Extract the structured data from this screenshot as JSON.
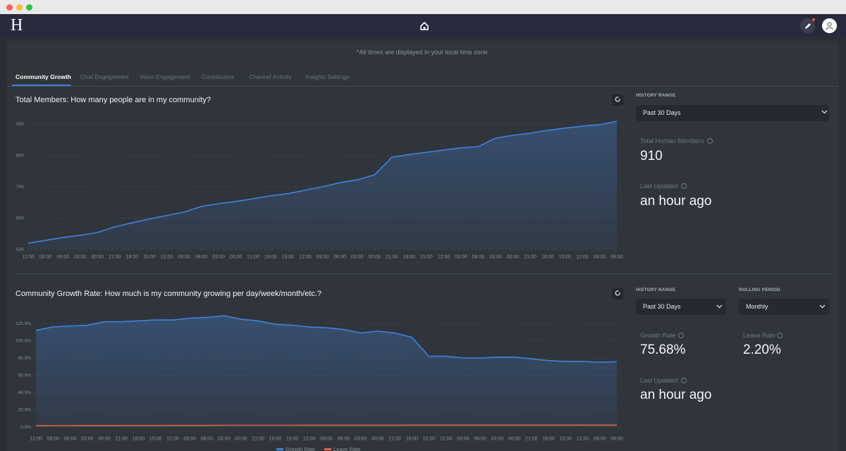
{
  "logo": "H",
  "header": {
    "note": "*All times are displayed in your local time zone."
  },
  "tabs": [
    "Community Growth",
    "Chat Engagement",
    "Voice Engagement",
    "Contributors",
    "Channel Activity",
    "Insights Settings"
  ],
  "charts": [
    {
      "type": "area",
      "title": "Total Members: How many people are in my community?",
      "categories": [
        "12:00",
        "09:00",
        "06:00",
        "03:00",
        "00:00",
        "21:00",
        "18:00",
        "15:00",
        "12:00",
        "09:00",
        "06:00",
        "03:00",
        "00:00",
        "21:00",
        "18:00",
        "15:00",
        "12:00",
        "09:00",
        "06:00",
        "03:00",
        "00:00",
        "21:00",
        "18:00",
        "15:00",
        "12:00",
        "09:00",
        "06:00",
        "03:00",
        "00:00",
        "21:00",
        "18:00",
        "15:00",
        "12:00",
        "09:00",
        "06:00"
      ],
      "values": [
        520,
        529,
        538,
        545,
        554,
        572,
        585,
        597,
        608,
        619,
        637,
        646,
        653,
        662,
        671,
        678,
        689,
        700,
        713,
        722,
        738,
        794,
        803,
        810,
        817,
        824,
        828,
        855,
        864,
        871,
        880,
        887,
        893,
        898,
        909
      ],
      "color": "#3f82dc",
      "ylim": [
        500,
        900
      ],
      "yticks": [
        500,
        600,
        700,
        800,
        900
      ],
      "grid": true
    },
    {
      "type": "area",
      "title": "Community Growth Rate: How much is my community growing per day/week/month/etc.?",
      "categories": [
        "12:00",
        "09:00",
        "06:00",
        "03:00",
        "00:00",
        "21:00",
        "18:00",
        "15:00",
        "12:00",
        "09:00",
        "06:00",
        "03:00",
        "00:00",
        "21:00",
        "18:00",
        "15:00",
        "12:00",
        "09:00",
        "06:00",
        "03:00",
        "00:00",
        "21:00",
        "18:00",
        "15:00",
        "12:00",
        "09:00",
        "06:00",
        "03:00",
        "00:00",
        "21:00",
        "18:00",
        "15:00",
        "12:00",
        "09:00",
        "06:00"
      ],
      "series": [
        {
          "name": "Growth Rate",
          "color": "#3f82dc",
          "values": [
            112,
            116,
            117,
            118,
            122,
            122,
            123,
            124,
            124,
            126,
            127,
            129,
            125,
            123,
            119,
            118,
            116,
            115,
            113,
            109,
            111,
            109,
            104,
            82,
            82,
            80,
            80,
            81,
            81,
            79,
            77,
            76,
            76,
            75,
            75.7
          ]
        },
        {
          "name": "Leave Rate",
          "color": "#e3653e",
          "values": [
            1.5,
            1.6,
            1.6,
            1.7,
            1.7,
            1.8,
            1.8,
            1.8,
            1.9,
            1.9,
            1.9,
            2,
            2,
            2,
            2,
            2,
            2.1,
            2.1,
            2.1,
            2.1,
            2.1,
            2.1,
            2.2,
            2.2,
            2.2,
            2.2,
            2.2,
            2.2,
            2.2,
            2.2,
            2.2,
            2.2,
            2.2,
            2.2,
            2.2
          ]
        }
      ],
      "ylim": [
        0,
        120
      ],
      "yticks": [
        {
          "value": 0,
          "label": "0.0%"
        },
        {
          "value": 20,
          "label": "20.0%"
        },
        {
          "value": 40,
          "label": "40.0%"
        },
        {
          "value": 60,
          "label": "60.0%"
        },
        {
          "value": 80,
          "label": "80.0%"
        },
        {
          "value": 100,
          "label": "100.0%"
        },
        {
          "value": 120,
          "label": "120.0%"
        }
      ],
      "grid": true
    }
  ],
  "panels": [
    {
      "history_range_label": "HISTORY RANGE",
      "history_range": "Past 30 Days",
      "stats": [
        {
          "label": "Total Human Members",
          "value": "910"
        },
        {
          "label": "Last Updated",
          "value": "an hour ago"
        }
      ]
    },
    {
      "history_range_label": "HISTORY RANGE",
      "history_range": "Past 30 Days",
      "rolling_period_label": "ROLLING PERIOD",
      "rolling_period": "Monthly",
      "stats": [
        {
          "label": "Growth Rate",
          "value": "75.68%"
        },
        {
          "label": "Leave Rate",
          "value": "2.20%"
        },
        {
          "label": "Last Updated",
          "value": "an hour ago"
        }
      ]
    }
  ]
}
